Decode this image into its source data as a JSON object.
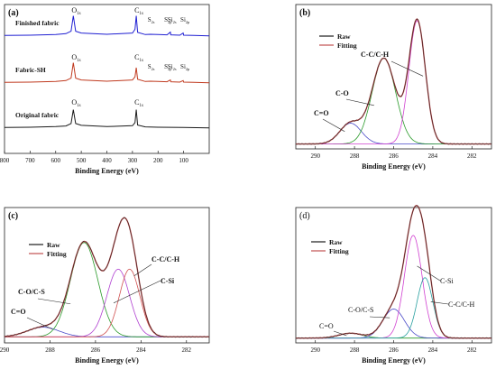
{
  "figure": {
    "xlabel": "Binding Energy (eV)"
  },
  "chart_data": [
    {
      "panel": "(a)",
      "type": "line",
      "xlabel": "Binding Energy (eV)",
      "ylabel": "",
      "xlim": [
        800,
        0
      ],
      "x_ticks": [
        800,
        700,
        600,
        500,
        400,
        300,
        200,
        100
      ],
      "series": [
        {
          "name": "Finished fabric",
          "color": "#1f1fd2",
          "x": [
            800,
            700,
            600,
            560,
            540,
            531,
            522,
            500,
            400,
            300,
            290,
            285,
            280,
            250,
            230,
            200,
            165,
            152,
            150,
            115,
            102,
            100,
            60,
            0
          ],
          "y": [
            0.02,
            0.03,
            0.05,
            0.08,
            0.16,
            0.66,
            0.16,
            0.1,
            0.06,
            0.1,
            0.22,
            0.66,
            0.12,
            0.05,
            0.06,
            0.05,
            0.04,
            0.13,
            0.04,
            0.03,
            0.1,
            0.03,
            0.02,
            0.01
          ]
        },
        {
          "name": "Fabric-SH",
          "color": "#c03a1f",
          "x": [
            800,
            700,
            600,
            560,
            540,
            531,
            522,
            500,
            400,
            300,
            290,
            285,
            280,
            250,
            230,
            200,
            165,
            152,
            150,
            115,
            102,
            100,
            60,
            0
          ],
          "y": [
            0.02,
            0.03,
            0.05,
            0.08,
            0.16,
            0.66,
            0.16,
            0.1,
            0.06,
            0.1,
            0.2,
            0.5,
            0.12,
            0.05,
            0.06,
            0.05,
            0.04,
            0.1,
            0.04,
            0.03,
            0.08,
            0.03,
            0.02,
            0.01
          ]
        },
        {
          "name": "Original fabric",
          "color": "#1a1a1a",
          "x": [
            800,
            700,
            600,
            560,
            540,
            531,
            522,
            500,
            400,
            300,
            290,
            285,
            280,
            250,
            200,
            100,
            0
          ],
          "y": [
            0.02,
            0.03,
            0.05,
            0.07,
            0.15,
            0.6,
            0.15,
            0.09,
            0.05,
            0.08,
            0.18,
            0.6,
            0.1,
            0.04,
            0.03,
            0.02,
            0.01
          ]
        }
      ],
      "annotations": [
        {
          "text": "Finished fabric",
          "series": 0
        },
        {
          "text": "Fabric-SH",
          "series": 1
        },
        {
          "text": "Original fabric",
          "series": 2
        },
        {
          "text": "O1s",
          "x": 531,
          "series": 0
        },
        {
          "text": "C1s",
          "x": 285,
          "series": 0
        },
        {
          "text": "S2s",
          "x": 230,
          "series": 0
        },
        {
          "text": "S2p",
          "x": 165,
          "series": 0
        },
        {
          "text": "Si2s",
          "x": 152,
          "series": 0
        },
        {
          "text": "Si2p",
          "x": 102,
          "series": 0
        },
        {
          "text": "O1s",
          "x": 531,
          "series": 1
        },
        {
          "text": "C1s",
          "x": 285,
          "series": 1
        },
        {
          "text": "S2s",
          "x": 230,
          "series": 1
        },
        {
          "text": "S2p",
          "x": 165,
          "series": 1
        },
        {
          "text": "Si2s",
          "x": 152,
          "series": 1
        },
        {
          "text": "Si2p",
          "x": 102,
          "series": 1
        },
        {
          "text": "O1s",
          "x": 531,
          "series": 2
        },
        {
          "text": "C1s",
          "x": 285,
          "series": 2
        }
      ]
    },
    {
      "panel": "(b)",
      "type": "line",
      "xlabel": "Binding Energy (eV)",
      "xlim": [
        291,
        281
      ],
      "x_ticks": [
        290,
        288,
        286,
        284,
        282
      ],
      "legend": [
        "Raw",
        "Fitting"
      ],
      "raw_color": "#1a1a1a",
      "fit_color": "#c05050",
      "baseline": 0.01,
      "components": [
        {
          "label": "C=O",
          "center": 288.2,
          "height": 0.16,
          "width": 0.55,
          "color": "#4a4ac8"
        },
        {
          "label": "C-O",
          "center": 286.5,
          "height": 0.66,
          "width": 0.6,
          "color": "#2a9a2a"
        },
        {
          "label": "C-C/C-H",
          "center": 284.8,
          "height": 0.95,
          "width": 0.42,
          "color": "#d040d0"
        }
      ]
    },
    {
      "panel": "(c)",
      "type": "line",
      "xlabel": "Binding Energy (eV)",
      "xlim": [
        290,
        281
      ],
      "x_ticks": [
        290,
        288,
        286,
        284,
        282
      ],
      "legend": [
        "Raw",
        "Fitting"
      ],
      "raw_color": "#1a1a1a",
      "fit_color": "#c05050",
      "baseline": 0.02,
      "components": [
        {
          "label": "C=O",
          "center": 288.3,
          "height": 0.08,
          "width": 0.7,
          "color": "#4a4ac8"
        },
        {
          "label": "C-O/C-S",
          "center": 286.5,
          "height": 0.78,
          "width": 0.6,
          "color": "#2a9a2a"
        },
        {
          "label": "C-Si",
          "center": 285.0,
          "height": 0.56,
          "width": 0.5,
          "color": "#b040d0"
        },
        {
          "label": "C-C/C-H",
          "center": 284.5,
          "height": 0.56,
          "width": 0.45,
          "color": "#d05050"
        }
      ]
    },
    {
      "panel": "(d)",
      "type": "line",
      "xlabel": "Binding Energy (eV)",
      "xlim": [
        291,
        281
      ],
      "x_ticks": [
        290,
        288,
        286,
        284,
        282
      ],
      "legend": [
        "Raw",
        "Fitting"
      ],
      "raw_color": "#1a1a1a",
      "fit_color": "#c05050",
      "baseline": 0.01,
      "components": [
        {
          "label": "C=O",
          "center": 288.2,
          "height": 0.04,
          "width": 0.6,
          "color": "#2a9a2a"
        },
        {
          "label": "C-O/C-S",
          "center": 286.0,
          "height": 0.24,
          "width": 0.55,
          "color": "#4a4ac8"
        },
        {
          "label": "C-Si",
          "center": 285.0,
          "height": 0.85,
          "width": 0.45,
          "color": "#d040d0"
        },
        {
          "label": "C-C/C-H",
          "center": 284.4,
          "height": 0.5,
          "width": 0.4,
          "color": "#2aa0a0"
        }
      ]
    }
  ]
}
